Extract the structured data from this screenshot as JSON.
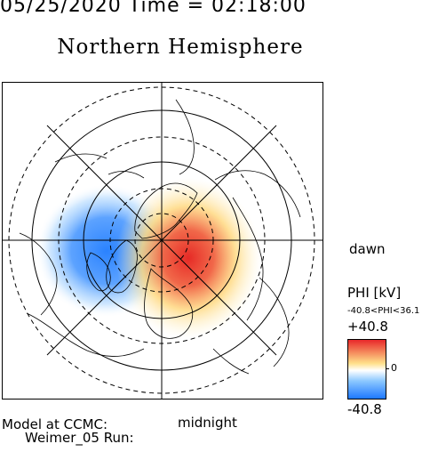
{
  "header": {
    "datetime": "05/25/2020 Time = 02:18:00"
  },
  "title": "Northern Hemisphere",
  "labels": {
    "dawn": "dawn",
    "midnight": "midnight"
  },
  "colorbar": {
    "quantity": "PHI [kV]",
    "range_text": "-40.8<PHI<36.1",
    "max_label": "+40.8",
    "min_label": "-40.8",
    "zero_label": "0",
    "colors": [
      "#1e78ff",
      "#8cc8ff",
      "#ffffff",
      "#ffe08a",
      "#e8282a"
    ]
  },
  "footer": {
    "line1": "Model at CCMC:",
    "line2": "Weimer_05 Run:"
  },
  "potential": {
    "min_kv": -40.8,
    "max_kv": 36.1,
    "colors": {
      "negative": "#2a82ff",
      "positive": "#e62a26",
      "positive_mid": "#ffd77a"
    }
  }
}
